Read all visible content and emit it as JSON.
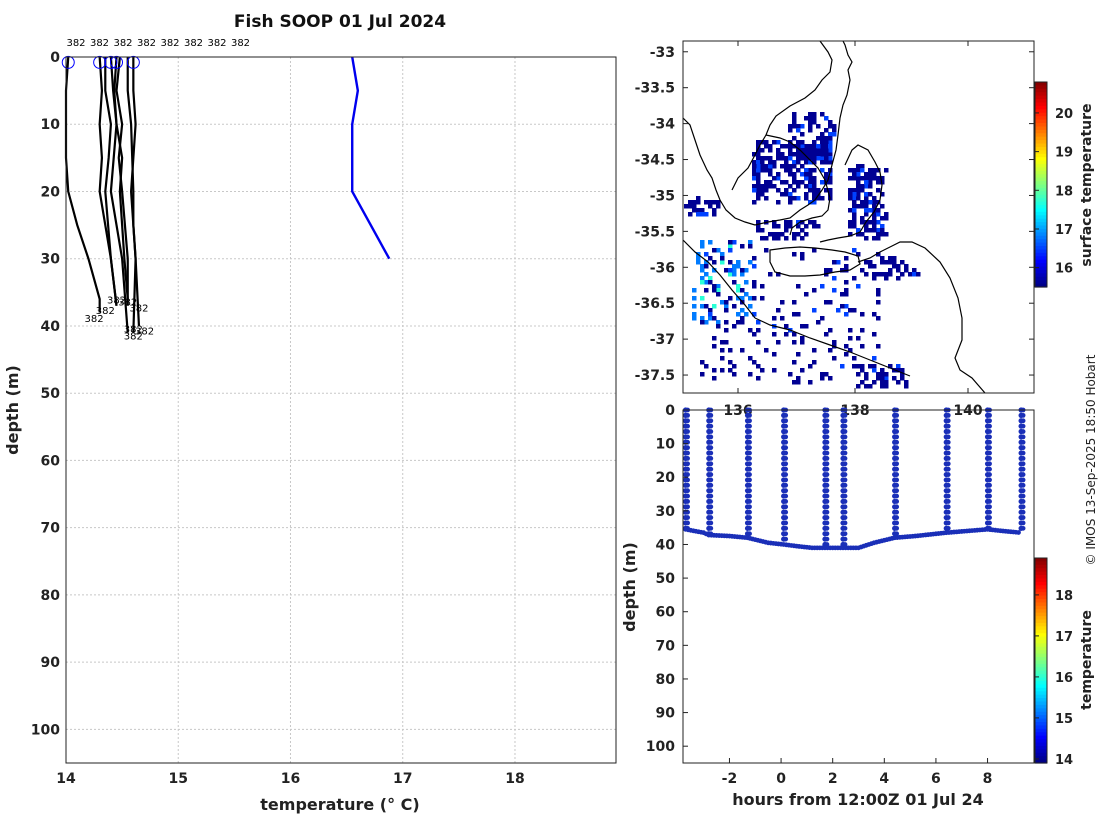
{
  "figure": {
    "title": "Fish SOOP 01 Jul 2024",
    "copyright": "© IMOS 13-Sep-2025 18:50 Hobart"
  },
  "chart_data": [
    {
      "type": "line",
      "panel": "profiles",
      "xlabel": "temperature (° C)",
      "ylabel": "depth (m)",
      "xlim": [
        14,
        18.9
      ],
      "ylim": [
        105,
        0
      ],
      "y_reversed": true,
      "xticks": [
        14,
        15,
        16,
        17,
        18
      ],
      "yticks": [
        0,
        10,
        20,
        30,
        40,
        50,
        60,
        70,
        80,
        90,
        100
      ],
      "grid": true,
      "top_labels": [
        "382",
        "382",
        "382",
        "382",
        "382",
        "382",
        "382",
        "382"
      ],
      "profile_end_labels": [
        "382",
        "382",
        "382",
        "382",
        "382",
        "382",
        "382",
        "382"
      ],
      "surface_markers_temperature": [
        14.02,
        14.3,
        14.4,
        14.45,
        14.6
      ],
      "series": [
        {
          "color": "#000000",
          "temperature": [
            14.02,
            14.0,
            14.0,
            14.0,
            14.02,
            14.1,
            14.2,
            14.3,
            14.3
          ],
          "depth": [
            0,
            5,
            10,
            15,
            20,
            25,
            30,
            36,
            38
          ]
        },
        {
          "color": "#000000",
          "temperature": [
            14.3,
            14.32,
            14.3,
            14.32,
            14.3,
            14.35,
            14.4,
            14.45
          ],
          "depth": [
            0,
            5,
            10,
            15,
            20,
            25,
            30,
            37
          ]
        },
        {
          "color": "#000000",
          "temperature": [
            14.35,
            14.35,
            14.4,
            14.38,
            14.35,
            14.4,
            14.45
          ],
          "depth": [
            0,
            5,
            10,
            15,
            20,
            30,
            37
          ]
        },
        {
          "color": "#000000",
          "temperature": [
            14.45,
            14.43,
            14.45,
            14.5,
            14.48,
            14.5,
            14.52,
            14.55
          ],
          "depth": [
            0,
            5,
            10,
            15,
            20,
            25,
            30,
            36
          ]
        },
        {
          "color": "#000000",
          "temperature": [
            14.48,
            14.45,
            14.5,
            14.47,
            14.5,
            14.55,
            14.55
          ],
          "depth": [
            0,
            5,
            10,
            15,
            20,
            30,
            37
          ]
        },
        {
          "color": "#000000",
          "temperature": [
            14.6,
            14.6,
            14.62,
            14.6,
            14.58,
            14.6,
            14.62,
            14.65
          ],
          "depth": [
            0,
            5,
            10,
            15,
            20,
            25,
            30,
            40
          ]
        },
        {
          "color": "#000000",
          "temperature": [
            14.55,
            14.55,
            14.58,
            14.6,
            14.6,
            14.62,
            14.6
          ],
          "depth": [
            0,
            5,
            10,
            20,
            25,
            30,
            41
          ]
        },
        {
          "color": "#000000",
          "temperature": [
            14.4,
            14.42,
            14.45,
            14.4,
            14.45,
            14.5,
            14.55
          ],
          "depth": [
            0,
            5,
            10,
            20,
            25,
            30,
            41
          ]
        },
        {
          "color": "#0000ee",
          "temperature": [
            16.55,
            16.6,
            16.55,
            16.55,
            16.88
          ],
          "depth": [
            0,
            5,
            10,
            20,
            30
          ]
        }
      ]
    },
    {
      "type": "heatmap",
      "panel": "map",
      "colorbar_label": "surface temperature",
      "colorbar_ticks": [
        16,
        17,
        18,
        19,
        20
      ],
      "colorbar_range": [
        15.5,
        20.8
      ],
      "latitude_ticks": [
        -33,
        -33.5,
        -34,
        -34.5,
        -35,
        -35.5,
        -36,
        -36.5,
        -37,
        -37.5
      ],
      "longitude_tick_labels": [
        "136",
        "138",
        "140"
      ],
      "lat_range": [
        -37.75,
        -32.85
      ]
    },
    {
      "type": "scatter",
      "panel": "depth_time",
      "xlabel": "hours from 12:00Z 01 Jul 24",
      "ylabel": "depth (m)",
      "xticks": [
        -2,
        0,
        2,
        4,
        6,
        8
      ],
      "xlim": [
        -3.8,
        9.8
      ],
      "yticks": [
        0,
        10,
        20,
        30,
        40,
        50,
        60,
        70,
        80,
        90,
        100
      ],
      "ylim": [
        105,
        0
      ],
      "colorbar_label": "temperature",
      "colorbar_ticks": [
        14,
        15,
        16,
        17,
        18
      ],
      "colorbar_range": [
        13.9,
        18.9
      ],
      "cast_times": [
        -3.7,
        -2.8,
        -1.3,
        0.1,
        1.7,
        2.4,
        4.4,
        6.4,
        8.0,
        9.3
      ],
      "cast_bottom_depths": [
        35.5,
        37,
        38,
        40,
        41,
        41,
        38,
        36.5,
        35.5,
        36
      ],
      "seafloor_track": {
        "hours": [
          -3.7,
          -3.0,
          -2.8,
          -2.0,
          -1.3,
          -0.5,
          0.1,
          0.6,
          1.2,
          1.7,
          2.4,
          3.0,
          3.6,
          4.4,
          5.2,
          6.4,
          7.2,
          8.0,
          8.6,
          9.3
        ],
        "depth": [
          35.5,
          36.5,
          37.2,
          37.5,
          38,
          39.5,
          40,
          40.5,
          41,
          41,
          41,
          41,
          39.5,
          38,
          37.5,
          36.5,
          36,
          35.5,
          36,
          36.5
        ]
      },
      "point_color": "#1a2fb8"
    }
  ]
}
